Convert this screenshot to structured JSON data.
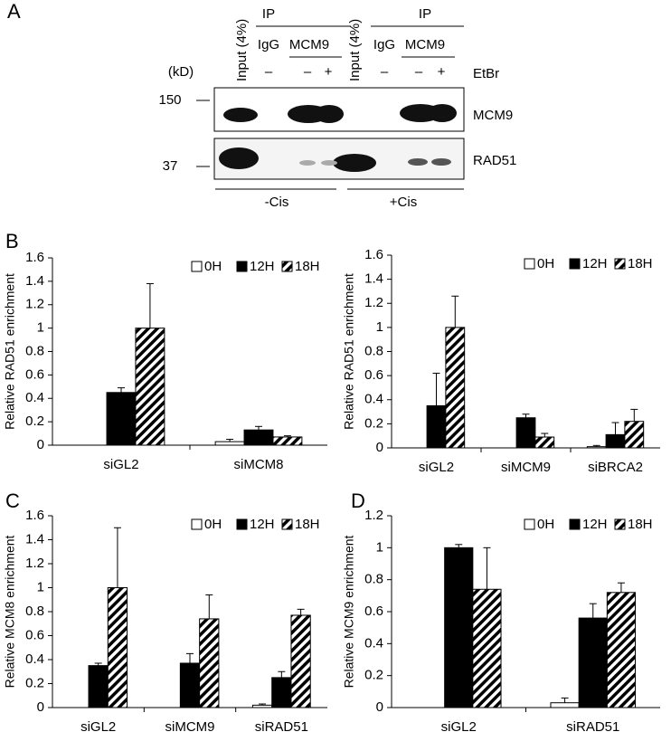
{
  "panel_labels": [
    "A",
    "B",
    "C",
    "D"
  ],
  "blot": {
    "input_labels": [
      "Input (4%)",
      "Input (4%)"
    ],
    "ip_labels": [
      "IP",
      "IP"
    ],
    "antibody_labels": [
      "IgG",
      "MCM9",
      "IgG",
      "MCM9"
    ],
    "kd_label": "(kD)",
    "etbr_label": "EtBr",
    "etbr_marks": [
      "–",
      "–",
      "+",
      "–",
      "–",
      "+"
    ],
    "markers": [
      "150",
      "37"
    ],
    "proteins": [
      "MCM9",
      "RAD51"
    ],
    "conditions": [
      "-Cis",
      "+Cis"
    ]
  },
  "chart_data": [
    {
      "type": "bar",
      "y_label": "Relative RAD51 enrichment",
      "categories": [
        "siGL2",
        "siMCM8"
      ],
      "ylim": [
        0,
        1.6
      ],
      "yticks": [
        0,
        0.2,
        0.4,
        0.6,
        0.8,
        1,
        1.2,
        1.4,
        1.6
      ],
      "series": [
        {
          "name": "0H",
          "color": "#ffffff",
          "values": [
            0,
            0.03
          ],
          "error": [
            0,
            0.02
          ]
        },
        {
          "name": "12H",
          "color": "#000000",
          "values": [
            0.45,
            0.13
          ],
          "error": [
            0.04,
            0.03
          ]
        },
        {
          "name": "18H",
          "color": "#000000",
          "fill": "hatch",
          "values": [
            1.0,
            0.07
          ],
          "error": [
            0.38,
            0.01
          ]
        }
      ]
    },
    {
      "type": "bar",
      "y_label": "Relative RAD51 enrichment",
      "categories": [
        "siGL2",
        "siMCM9",
        "siBRCA2"
      ],
      "ylim": [
        0,
        1.6
      ],
      "yticks": [
        0,
        0.2,
        0.4,
        0.6,
        0.8,
        1,
        1.2,
        1.4,
        1.6
      ],
      "series": [
        {
          "name": "0H",
          "color": "#ffffff",
          "values": [
            0,
            0,
            0.01
          ],
          "error": [
            0,
            0,
            0.01
          ]
        },
        {
          "name": "12H",
          "color": "#000000",
          "values": [
            0.35,
            0.25,
            0.11
          ],
          "error": [
            0.27,
            0.03,
            0.1
          ]
        },
        {
          "name": "18H",
          "color": "#000000",
          "fill": "hatch",
          "values": [
            1.0,
            0.09,
            0.22
          ],
          "error": [
            0.26,
            0.03,
            0.1
          ]
        }
      ]
    },
    {
      "type": "bar",
      "y_label": "Relative MCM8 enrichment",
      "categories": [
        "siGL2",
        "siMCM9",
        "siRAD51"
      ],
      "ylim": [
        0,
        1.6
      ],
      "yticks": [
        0,
        0.2,
        0.4,
        0.6,
        0.8,
        1,
        1.2,
        1.4,
        1.6
      ],
      "series": [
        {
          "name": "0H",
          "color": "#ffffff",
          "values": [
            0,
            0,
            0.02
          ],
          "error": [
            0,
            0,
            0.01
          ]
        },
        {
          "name": "12H",
          "color": "#000000",
          "values": [
            0.35,
            0.37,
            0.25
          ],
          "error": [
            0.02,
            0.08,
            0.05
          ]
        },
        {
          "name": "18H",
          "color": "#000000",
          "fill": "hatch",
          "values": [
            1.0,
            0.74,
            0.77
          ],
          "error": [
            0.5,
            0.2,
            0.05
          ]
        }
      ]
    },
    {
      "type": "bar",
      "y_label": "Relative MCM9 enrichment",
      "categories": [
        "siGL2",
        "siRAD51"
      ],
      "ylim": [
        0,
        1.2
      ],
      "yticks": [
        0,
        0.2,
        0.4,
        0.6,
        0.8,
        1,
        1.2
      ],
      "series": [
        {
          "name": "0H",
          "color": "#ffffff",
          "values": [
            0,
            0.03
          ],
          "error": [
            0,
            0.03
          ]
        },
        {
          "name": "12H",
          "color": "#000000",
          "values": [
            1.0,
            0.56
          ],
          "error": [
            0.02,
            0.09
          ]
        },
        {
          "name": "18H",
          "color": "#000000",
          "fill": "hatch",
          "values": [
            0.74,
            0.72
          ],
          "error": [
            0.26,
            0.06
          ]
        }
      ]
    }
  ]
}
